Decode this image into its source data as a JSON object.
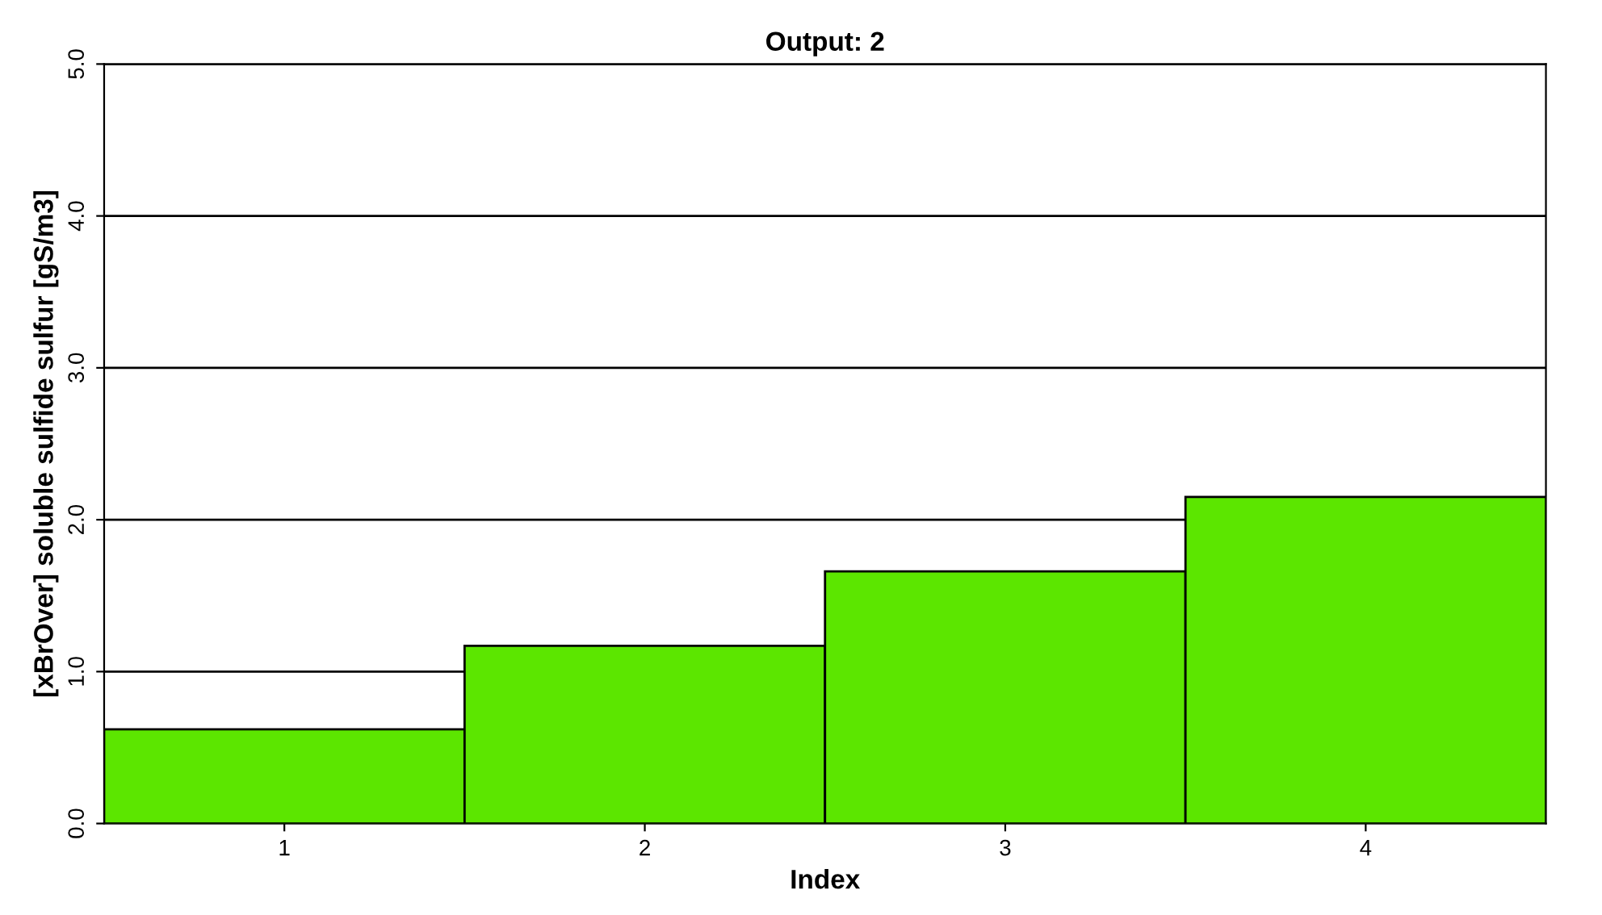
{
  "chart_data": {
    "type": "bar",
    "title": "Output: 2",
    "xlabel": "Index",
    "ylabel": "[xBrOver] soluble sulfide sulfur [gS/m3]",
    "categories": [
      "1",
      "2",
      "3",
      "4"
    ],
    "series": [
      {
        "color": "#5ce600",
        "values": [
          0.62,
          1.17,
          1.66,
          2.15
        ]
      }
    ],
    "ylim": [
      0,
      5
    ],
    "yticks": [
      {
        "value": 0,
        "label": "0.0"
      },
      {
        "value": 1,
        "label": "1.0"
      },
      {
        "value": 2,
        "label": "2.0"
      },
      {
        "value": 3,
        "label": "3.0"
      },
      {
        "value": 4,
        "label": "4.0"
      },
      {
        "value": 5,
        "label": "5.0"
      }
    ],
    "grid": "y"
  }
}
